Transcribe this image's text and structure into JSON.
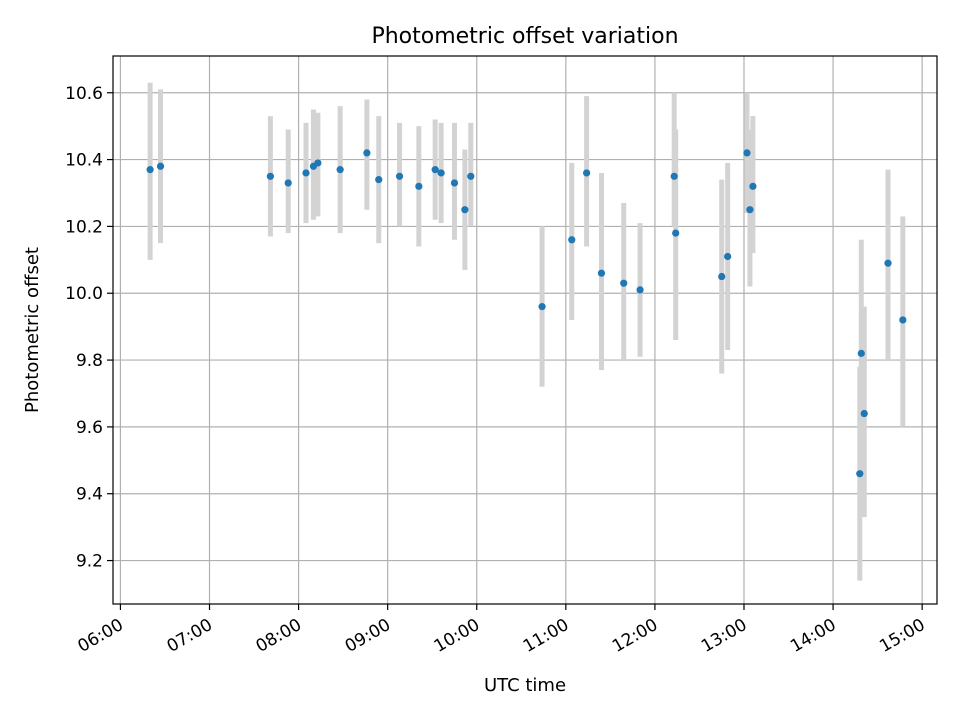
{
  "chart_data": {
    "type": "scatter",
    "title": "Photometric offset variation",
    "xlabel": "UTC time",
    "ylabel": "Photometric offset",
    "x_ticks": [
      "06:00",
      "07:00",
      "08:00",
      "09:00",
      "10:00",
      "11:00",
      "12:00",
      "13:00",
      "14:00",
      "15:00"
    ],
    "y_ticks": [
      "9.2",
      "9.4",
      "9.6",
      "9.8",
      "10.0",
      "10.2",
      "10.4",
      "10.6"
    ],
    "xlim": [
      "05:55",
      "15:10"
    ],
    "ylim": [
      9.07,
      10.71
    ],
    "grid": true,
    "point_color": "#1f77b4",
    "errorbar_color": "#d3d3d3",
    "series": [
      {
        "points": [
          {
            "x": "06:20",
            "y": 10.37,
            "lo": 10.1,
            "hi": 10.63
          },
          {
            "x": "06:27",
            "y": 10.38,
            "lo": 10.15,
            "hi": 10.61
          },
          {
            "x": "07:41",
            "y": 10.35,
            "lo": 10.17,
            "hi": 10.53
          },
          {
            "x": "07:53",
            "y": 10.33,
            "lo": 10.18,
            "hi": 10.49
          },
          {
            "x": "08:05",
            "y": 10.36,
            "lo": 10.21,
            "hi": 10.51
          },
          {
            "x": "08:10",
            "y": 10.38,
            "lo": 10.22,
            "hi": 10.55
          },
          {
            "x": "08:13",
            "y": 10.39,
            "lo": 10.23,
            "hi": 10.54
          },
          {
            "x": "08:28",
            "y": 10.37,
            "lo": 10.18,
            "hi": 10.56
          },
          {
            "x": "08:46",
            "y": 10.42,
            "lo": 10.25,
            "hi": 10.58
          },
          {
            "x": "08:54",
            "y": 10.34,
            "lo": 10.15,
            "hi": 10.53
          },
          {
            "x": "09:08",
            "y": 10.35,
            "lo": 10.2,
            "hi": 10.51
          },
          {
            "x": "09:21",
            "y": 10.32,
            "lo": 10.14,
            "hi": 10.5
          },
          {
            "x": "09:32",
            "y": 10.37,
            "lo": 10.22,
            "hi": 10.52
          },
          {
            "x": "09:36",
            "y": 10.36,
            "lo": 10.21,
            "hi": 10.51
          },
          {
            "x": "09:45",
            "y": 10.33,
            "lo": 10.16,
            "hi": 10.51
          },
          {
            "x": "09:52",
            "y": 10.25,
            "lo": 10.07,
            "hi": 10.43
          },
          {
            "x": "09:56",
            "y": 10.35,
            "lo": 10.2,
            "hi": 10.51
          },
          {
            "x": "10:44",
            "y": 9.96,
            "lo": 9.72,
            "hi": 10.2
          },
          {
            "x": "11:04",
            "y": 10.16,
            "lo": 9.92,
            "hi": 10.39
          },
          {
            "x": "11:14",
            "y": 10.36,
            "lo": 10.14,
            "hi": 10.59
          },
          {
            "x": "11:24",
            "y": 10.06,
            "lo": 9.77,
            "hi": 10.36
          },
          {
            "x": "11:39",
            "y": 10.03,
            "lo": 9.8,
            "hi": 10.27
          },
          {
            "x": "11:50",
            "y": 10.01,
            "lo": 9.81,
            "hi": 10.21
          },
          {
            "x": "12:13",
            "y": 10.35,
            "lo": 10.2,
            "hi": 10.6
          },
          {
            "x": "12:14",
            "y": 10.18,
            "lo": 9.86,
            "hi": 10.49
          },
          {
            "x": "12:45",
            "y": 10.05,
            "lo": 9.76,
            "hi": 10.34
          },
          {
            "x": "12:49",
            "y": 10.11,
            "lo": 9.83,
            "hi": 10.39
          },
          {
            "x": "13:02",
            "y": 10.42,
            "lo": 10.24,
            "hi": 10.6
          },
          {
            "x": "13:04",
            "y": 10.25,
            "lo": 10.02,
            "hi": 10.49
          },
          {
            "x": "13:06",
            "y": 10.32,
            "lo": 10.12,
            "hi": 10.53
          },
          {
            "x": "14:18",
            "y": 9.46,
            "lo": 9.14,
            "hi": 9.78
          },
          {
            "x": "14:19",
            "y": 9.82,
            "lo": 9.49,
            "hi": 10.16
          },
          {
            "x": "14:21",
            "y": 9.64,
            "lo": 9.33,
            "hi": 9.96
          },
          {
            "x": "14:37",
            "y": 10.09,
            "lo": 9.8,
            "hi": 10.37
          },
          {
            "x": "14:47",
            "y": 9.92,
            "lo": 9.6,
            "hi": 10.23
          }
        ]
      }
    ]
  }
}
